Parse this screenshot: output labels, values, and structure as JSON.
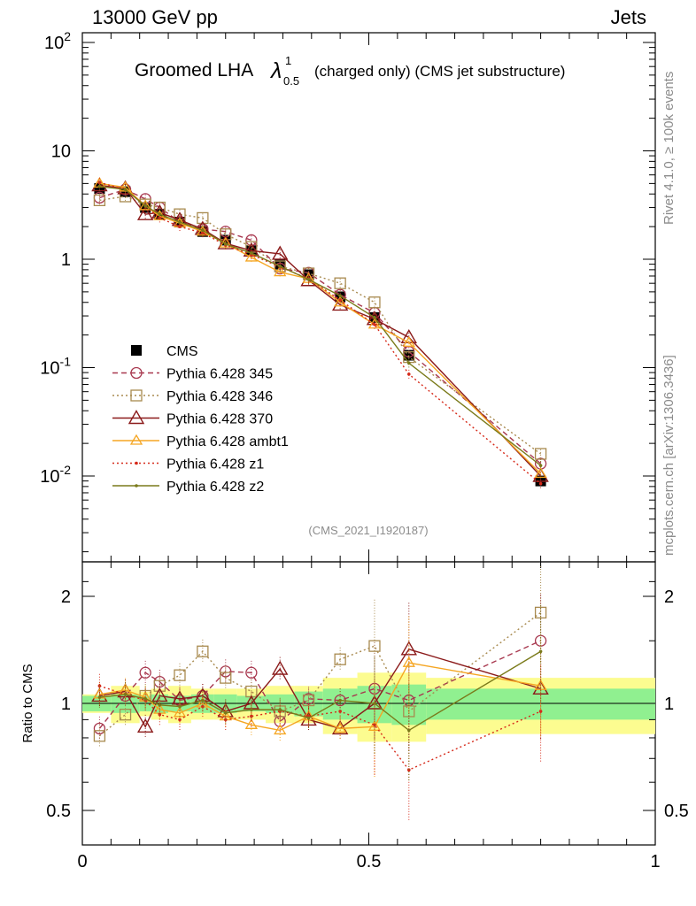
{
  "header": {
    "energy": "13000 GeV pp",
    "category": "Jets"
  },
  "plot_title": {
    "prefix": "Groomed LHA",
    "symbol": "λ",
    "sup": "1",
    "sub": "0.5",
    "suffix": "(charged only) (CMS jet substructure)"
  },
  "side_labels": {
    "rivet": "Rivet 4.1.0, ≥ 100k events",
    "mcplots": "mcplots.cern.ch [arXiv:1306.3436]"
  },
  "analysis_id": "(CMS_2021_I1920187)",
  "ratio_ylabel": "Ratio to CMS",
  "colors": {
    "data": "#000000",
    "p345": "#a8384f",
    "p346": "#a88a4f",
    "p370": "#8b1a1a",
    "ambt1": "#f5a623",
    "z1": "#d62a1a",
    "z2": "#7a7a1a",
    "band_inner": "#90f090",
    "band_outer": "#fcfc90"
  },
  "chart_data": [
    {
      "type": "line",
      "scale": "log",
      "title": "Groomed LHA λ^1_0.5 (charged only) (CMS jet substructure)",
      "xlim": [
        0,
        1
      ],
      "ylim": [
        0.002,
        130
      ],
      "ytick_labels": [
        "10^2",
        "10",
        "1",
        "10^-1",
        "10^-2"
      ],
      "x": [
        0.03,
        0.075,
        0.11,
        0.135,
        0.17,
        0.21,
        0.25,
        0.295,
        0.345,
        0.395,
        0.45,
        0.51,
        0.57,
        0.8
      ],
      "series": [
        {
          "key": "data",
          "name": "CMS",
          "values": [
            4.5,
            4.2,
            3.0,
            2.6,
            2.2,
            1.8,
            1.5,
            1.2,
            0.9,
            0.72,
            0.45,
            0.29,
            0.13,
            0.009
          ]
        },
        {
          "key": "p345",
          "name": "Pythia 6.428 345",
          "values": [
            3.7,
            4.4,
            3.6,
            3.0,
            2.2,
            1.9,
            1.8,
            1.5,
            0.82,
            0.75,
            0.47,
            0.32,
            0.14,
            0.013
          ]
        },
        {
          "key": "p346",
          "name": "Pythia 6.428 346",
          "values": [
            3.5,
            3.8,
            3.2,
            3.0,
            2.6,
            2.4,
            1.7,
            1.3,
            0.86,
            0.74,
            0.6,
            0.4,
            0.125,
            0.016
          ]
        },
        {
          "key": "p370",
          "name": "Pythia 6.428 370",
          "values": [
            4.8,
            4.5,
            2.6,
            2.7,
            2.3,
            1.9,
            1.4,
            1.2,
            1.12,
            0.64,
            0.38,
            0.28,
            0.19,
            0.01
          ]
        },
        {
          "key": "ambt1",
          "name": "Pythia 6.428 ambt1",
          "values": [
            5.0,
            4.6,
            3.1,
            2.5,
            2.15,
            1.8,
            1.4,
            1.04,
            0.76,
            0.66,
            0.4,
            0.25,
            0.17,
            0.0105
          ]
        },
        {
          "key": "z1",
          "name": "Pythia 6.428 z1",
          "values": [
            5.1,
            4.4,
            3.1,
            2.4,
            2.0,
            1.75,
            1.35,
            1.1,
            0.85,
            0.66,
            0.42,
            0.25,
            0.087,
            0.0085
          ]
        },
        {
          "key": "z2",
          "name": "Pythia 6.428 z2",
          "values": [
            4.7,
            4.4,
            3.1,
            2.6,
            2.2,
            1.85,
            1.38,
            1.14,
            0.86,
            0.65,
            0.46,
            0.29,
            0.11,
            0.0125
          ]
        }
      ]
    },
    {
      "type": "line",
      "title": "Ratio to CMS",
      "xlabel": "",
      "ylabel": "Ratio to CMS",
      "scale": "log",
      "xlim": [
        0,
        1
      ],
      "ylim": [
        0.37,
        2.4
      ],
      "xtick_labels": [
        "0",
        "0.5",
        "1"
      ],
      "ytick_labels": [
        "0.5",
        "1",
        "2"
      ],
      "bins": [
        [
          0,
          0.05
        ],
        [
          0.05,
          0.1
        ],
        [
          0.1,
          0.12
        ],
        [
          0.12,
          0.15
        ],
        [
          0.15,
          0.19
        ],
        [
          0.19,
          0.23
        ],
        [
          0.23,
          0.27
        ],
        [
          0.27,
          0.32
        ],
        [
          0.32,
          0.37
        ],
        [
          0.37,
          0.42
        ],
        [
          0.42,
          0.48
        ],
        [
          0.48,
          0.54
        ],
        [
          0.54,
          0.6
        ],
        [
          0.6,
          1.0
        ]
      ],
      "band_inner": [
        0.05,
        0.06,
        0.05,
        0.06,
        0.05,
        0.06,
        0.06,
        0.05,
        0.06,
        0.08,
        0.1,
        0.12,
        0.13,
        0.1
      ],
      "band_outer": [
        0.06,
        0.12,
        0.08,
        0.1,
        0.12,
        0.1,
        0.1,
        0.1,
        0.12,
        0.12,
        0.18,
        0.22,
        0.22,
        0.18
      ],
      "x": [
        0.03,
        0.075,
        0.11,
        0.135,
        0.17,
        0.21,
        0.25,
        0.295,
        0.345,
        0.395,
        0.45,
        0.51,
        0.57,
        0.8
      ],
      "series": [
        {
          "key": "p345",
          "name": "Pythia 6.428 345",
          "values": [
            0.85,
            1.05,
            1.22,
            1.15,
            1.02,
            1.05,
            1.23,
            1.22,
            0.89,
            1.03,
            1.02,
            1.1,
            1.02,
            1.5
          ]
        },
        {
          "key": "p346",
          "name": "Pythia 6.428 346",
          "values": [
            0.81,
            0.93,
            1.05,
            1.12,
            1.2,
            1.4,
            1.18,
            1.08,
            0.95,
            1.02,
            1.33,
            1.45,
            0.95,
            1.8
          ]
        },
        {
          "key": "p370",
          "name": "Pythia 6.428 370",
          "values": [
            1.05,
            1.08,
            0.86,
            1.05,
            1.03,
            1.05,
            0.95,
            1.0,
            1.25,
            0.9,
            0.85,
            1.0,
            1.42,
            1.1
          ]
        },
        {
          "key": "ambt1",
          "name": "Pythia 6.428 ambt1",
          "values": [
            1.06,
            1.09,
            1.04,
            0.96,
            0.94,
            1.0,
            0.92,
            0.87,
            0.84,
            0.92,
            0.85,
            0.86,
            1.3,
            1.12
          ]
        },
        {
          "key": "z1",
          "name": "Pythia 6.428 z1",
          "values": [
            1.12,
            1.06,
            1.02,
            0.93,
            0.9,
            0.98,
            0.9,
            0.92,
            0.95,
            0.92,
            0.95,
            0.87,
            0.65,
            0.95
          ]
        },
        {
          "key": "z2",
          "name": "Pythia 6.428 z2",
          "values": [
            1.04,
            1.06,
            1.03,
            0.99,
            0.98,
            1.02,
            0.94,
            0.96,
            0.96,
            0.91,
            1.02,
            1.0,
            0.84,
            1.4
          ]
        }
      ]
    }
  ]
}
